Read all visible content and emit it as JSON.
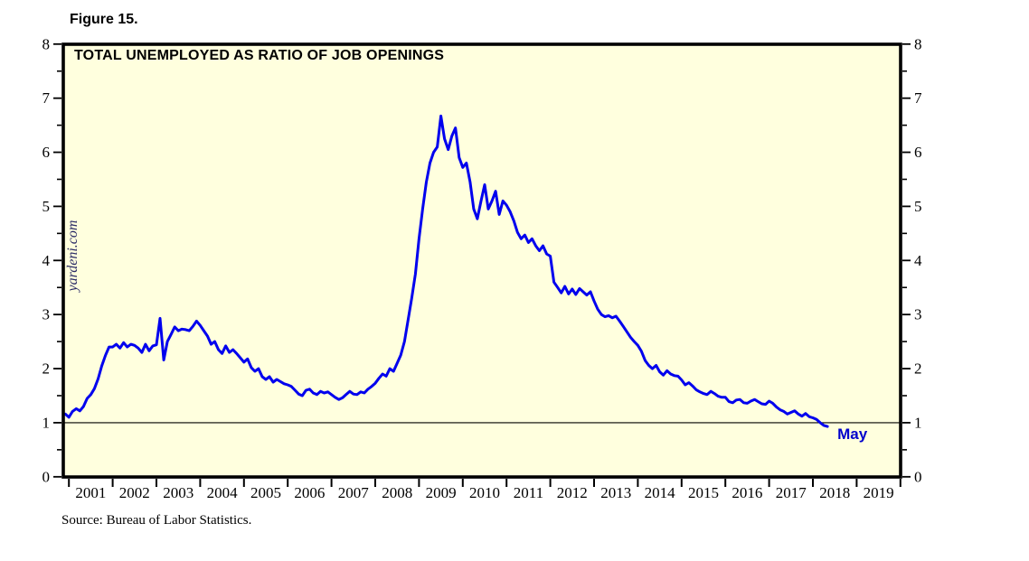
{
  "figure_label": "Figure 15.",
  "title": "TOTAL UNEMPLOYED AS RATIO OF JOB OPENINGS",
  "watermark": "yardeni.com",
  "source": "Source: Bureau of Labor Statistics.",
  "colors": {
    "plot_background": "#FFFFDE",
    "line": "#0000EE",
    "border": "#000000",
    "annotation_text": "#0000CC",
    "watermark_text": "#2B2B66",
    "axis_text": "#000000"
  },
  "chart_data": {
    "type": "line",
    "title": "TOTAL UNEMPLOYED AS RATIO OF JOB OPENINGS",
    "xlabel": "",
    "ylabel": "",
    "ylim": [
      0,
      8
    ],
    "y_ticks": [
      "0",
      "1",
      "2",
      "3",
      "4",
      "5",
      "6",
      "7",
      "8"
    ],
    "y_minor_tick_step": 0.5,
    "x_tick_years": [
      "2001",
      "2002",
      "2003",
      "2004",
      "2005",
      "2006",
      "2007",
      "2008",
      "2009",
      "2010",
      "2011",
      "2012",
      "2013",
      "2014",
      "2015",
      "2016",
      "2017",
      "2018",
      "2019"
    ],
    "x_axis_span_years": 19.33,
    "reference_line_y": 1,
    "grid": false,
    "legend": "none",
    "annotation": {
      "label": "May",
      "month": "2018-05",
      "value": 0.93
    },
    "series": [
      {
        "name": "Total unemployed as ratio of job openings",
        "frequency": "monthly",
        "start_month": "2000-12",
        "end_month": "2018-05",
        "values": [
          1.16,
          1.1,
          1.21,
          1.26,
          1.22,
          1.3,
          1.45,
          1.52,
          1.63,
          1.81,
          2.05,
          2.24,
          2.4,
          2.4,
          2.45,
          2.38,
          2.48,
          2.4,
          2.45,
          2.43,
          2.38,
          2.3,
          2.45,
          2.33,
          2.42,
          2.44,
          2.93,
          2.16,
          2.5,
          2.63,
          2.77,
          2.7,
          2.73,
          2.72,
          2.7,
          2.78,
          2.88,
          2.8,
          2.7,
          2.6,
          2.45,
          2.5,
          2.35,
          2.28,
          2.42,
          2.3,
          2.35,
          2.28,
          2.2,
          2.12,
          2.18,
          2.02,
          1.95,
          2.0,
          1.85,
          1.8,
          1.85,
          1.75,
          1.8,
          1.76,
          1.72,
          1.7,
          1.67,
          1.6,
          1.53,
          1.5,
          1.6,
          1.62,
          1.55,
          1.52,
          1.58,
          1.55,
          1.57,
          1.52,
          1.47,
          1.43,
          1.46,
          1.52,
          1.58,
          1.53,
          1.52,
          1.57,
          1.55,
          1.62,
          1.67,
          1.73,
          1.82,
          1.9,
          1.86,
          2.0,
          1.95,
          2.1,
          2.25,
          2.5,
          2.9,
          3.3,
          3.75,
          4.4,
          4.95,
          5.45,
          5.8,
          6.0,
          6.1,
          6.67,
          6.25,
          6.05,
          6.3,
          6.45,
          5.9,
          5.72,
          5.8,
          5.45,
          4.95,
          4.77,
          5.1,
          5.4,
          4.95,
          5.1,
          5.28,
          4.85,
          5.1,
          5.02,
          4.9,
          4.73,
          4.52,
          4.4,
          4.47,
          4.33,
          4.4,
          4.27,
          4.18,
          4.27,
          4.12,
          4.08,
          3.6,
          3.5,
          3.4,
          3.52,
          3.38,
          3.47,
          3.37,
          3.48,
          3.42,
          3.36,
          3.42,
          3.25,
          3.1,
          3.0,
          2.96,
          2.98,
          2.94,
          2.97,
          2.88,
          2.78,
          2.68,
          2.58,
          2.5,
          2.43,
          2.32,
          2.15,
          2.06,
          2.0,
          2.06,
          1.94,
          1.88,
          1.96,
          1.9,
          1.87,
          1.86,
          1.79,
          1.7,
          1.74,
          1.68,
          1.61,
          1.57,
          1.54,
          1.52,
          1.58,
          1.54,
          1.49,
          1.47,
          1.47,
          1.39,
          1.37,
          1.42,
          1.43,
          1.37,
          1.36,
          1.4,
          1.43,
          1.39,
          1.35,
          1.34,
          1.4,
          1.36,
          1.29,
          1.24,
          1.21,
          1.16,
          1.19,
          1.22,
          1.16,
          1.12,
          1.17,
          1.11,
          1.09,
          1.06,
          1.0,
          0.95,
          0.93
        ]
      }
    ]
  }
}
